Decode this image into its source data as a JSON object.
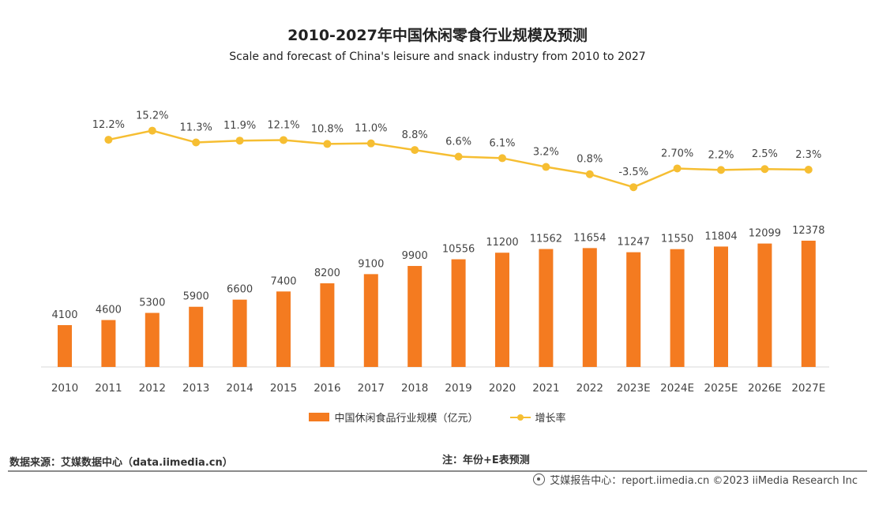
{
  "header": {
    "title": "2010-2027年中国休闲零食行业规模及预测",
    "subtitle": "Scale and forecast of China's leisure and snack industry from 2010 to 2027"
  },
  "legend": {
    "bar_label": "中国休闲食品行业规模（亿元）",
    "line_label": "增长率"
  },
  "footer": {
    "source": "数据来源：艾媒数据中心（data.iimedia.cn）",
    "note": "注：年份+E表预测",
    "brand": "艾媒报告中心：report.iimedia.cn ©2023 iiMedia Research Inc"
  },
  "colors": {
    "bar": "#F47B20",
    "line": "#F6BE32",
    "axis": "#d9d9d9"
  },
  "chart_data": {
    "type": "bar",
    "categories": [
      "2010",
      "2011",
      "2012",
      "2013",
      "2014",
      "2015",
      "2016",
      "2017",
      "2018",
      "2019",
      "2020",
      "2021",
      "2022",
      "2023E",
      "2024E",
      "2025E",
      "2026E",
      "2027E"
    ],
    "series": [
      {
        "name": "中国休闲食品行业规模（亿元）",
        "type": "bar",
        "values": [
          4100,
          4600,
          5300,
          5900,
          6600,
          7400,
          8200,
          9100,
          9900,
          10556,
          11200,
          11562,
          11654,
          11247,
          11550,
          11804,
          12099,
          12378
        ],
        "labels": [
          "4100",
          "4600",
          "5300",
          "5900",
          "6600",
          "7400",
          "8200",
          "9100",
          "9900",
          "10556",
          "11200",
          "11562",
          "11654",
          "11247",
          "11550",
          "11804",
          "12099",
          "12378"
        ]
      },
      {
        "name": "增长率",
        "type": "line",
        "values": [
          null,
          12.2,
          15.2,
          11.3,
          11.9,
          12.1,
          10.8,
          11.0,
          8.8,
          6.6,
          6.1,
          3.2,
          0.8,
          -3.5,
          2.7,
          2.2,
          2.5,
          2.3
        ],
        "labels": [
          "",
          "12.2%",
          "15.2%",
          "11.3%",
          "11.9%",
          "12.1%",
          "10.8%",
          "11.0%",
          "8.8%",
          "6.6%",
          "6.1%",
          "3.2%",
          "0.8%",
          "-3.5%",
          "2.70%",
          "2.2%",
          "2.5%",
          "2.3%"
        ]
      }
    ],
    "grid": false,
    "legend_position": "bottom"
  }
}
